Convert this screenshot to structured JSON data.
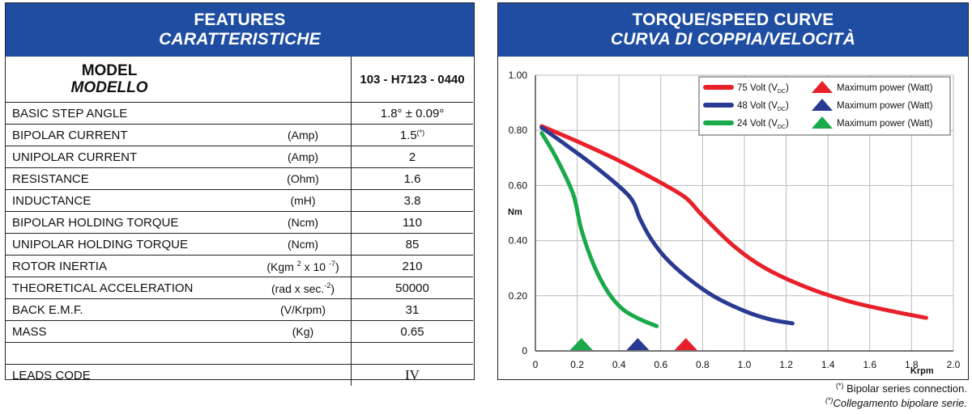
{
  "left": {
    "title": "FEATURES",
    "title_it": "CARATTERISTICHE",
    "model_label": "MODEL",
    "model_label_it": "MODELLO",
    "model_code": "103 - H7123 - 0440",
    "rows": [
      {
        "label": "BASIC STEP ANGLE",
        "unit": "",
        "value": "1.8°  ± 0.09°"
      },
      {
        "label": "BIPOLAR CURRENT",
        "unit": "(Amp)",
        "value": "1.5",
        "star": "(*)"
      },
      {
        "label": "UNIPOLAR CURRENT",
        "unit": "(Amp)",
        "value": "2"
      },
      {
        "label": "RESISTANCE",
        "unit": "(Ohm)",
        "value": "1.6"
      },
      {
        "label": "INDUCTANCE",
        "unit": "(mH)",
        "value": "3.8"
      },
      {
        "label": "BIPOLAR HOLDING TORQUE",
        "unit": "(Ncm)",
        "value": "110"
      },
      {
        "label": "UNIPOLAR HOLDING TORQUE",
        "unit": "(Ncm)",
        "value": "85"
      },
      {
        "label": "ROTOR INERTIA",
        "unit_a": "(Kgm ",
        "unit_sup1": "2",
        "unit_b": " x 10 ",
        "unit_sup2": "-7",
        "unit_c": ")",
        "value": "210"
      },
      {
        "label": "THEORETICAL ACCELERATION",
        "unit_a": "(rad x sec.",
        "unit_sup1": "-2",
        "unit_c": ")",
        "value": "50000"
      },
      {
        "label": "BACK E.M.F.",
        "unit": "(V/Krpm)",
        "value": "31"
      },
      {
        "label": "MASS",
        "unit": "(Kg)",
        "value": "0.65"
      },
      {
        "label": "",
        "unit": "",
        "value": ""
      },
      {
        "label": "LEADS CODE",
        "unit": "",
        "value": "IV"
      }
    ]
  },
  "right": {
    "title": "TORQUE/SPEED CURVE",
    "title_it": "CURVA DI COPPIA/VELOCITÀ"
  },
  "chart_data": {
    "type": "line",
    "title": "TORQUE/SPEED CURVE",
    "xlabel": "Krpm",
    "ylabel": "Nm",
    "xlim": [
      0,
      2.0
    ],
    "ylim": [
      0,
      1.0
    ],
    "xticks": [
      "0",
      "0.2",
      "0.4",
      "0.6",
      "0.8",
      "1.0",
      "1.2",
      "1.4",
      "1.6",
      "1.8",
      "2.0"
    ],
    "yticks": [
      "0",
      "0.20",
      "0.40",
      "0.60",
      "0.80",
      "1.00"
    ],
    "grid": true,
    "legend_position": "top-right",
    "max_power_label": "Maximum power (Watt)",
    "series": [
      {
        "name": "75 Volt (V",
        "name_sub": "DC",
        "name_end": ")",
        "color": "#e8202a",
        "x": [
          0.03,
          0.2,
          0.4,
          0.6,
          0.72,
          0.8,
          0.95,
          1.1,
          1.3,
          1.5,
          1.7,
          1.87
        ],
        "y": [
          0.815,
          0.76,
          0.69,
          0.61,
          0.555,
          0.49,
          0.38,
          0.3,
          0.23,
          0.18,
          0.145,
          0.12
        ],
        "max_power_x": 0.72
      },
      {
        "name": "48 Volt (V",
        "name_sub": "DC",
        "name_end": ")",
        "color": "#283a92",
        "x": [
          0.03,
          0.15,
          0.3,
          0.45,
          0.5,
          0.55,
          0.62,
          0.72,
          0.85,
          1.0,
          1.12,
          1.23
        ],
        "y": [
          0.81,
          0.745,
          0.66,
          0.56,
          0.48,
          0.41,
          0.34,
          0.27,
          0.2,
          0.145,
          0.115,
          0.1
        ],
        "max_power_x": 0.49
      },
      {
        "name": "24 Volt (V",
        "name_sub": "DC",
        "name_end": ")",
        "color": "#1aa94a",
        "x": [
          0.03,
          0.1,
          0.18,
          0.22,
          0.28,
          0.35,
          0.42,
          0.5,
          0.58
        ],
        "y": [
          0.79,
          0.7,
          0.57,
          0.44,
          0.31,
          0.21,
          0.15,
          0.115,
          0.09
        ],
        "max_power_x": 0.22
      }
    ]
  },
  "footnotes": {
    "star": "(*)",
    "line1": "Bipolar series connection.",
    "line2": "Collegamento bipolare serie."
  }
}
